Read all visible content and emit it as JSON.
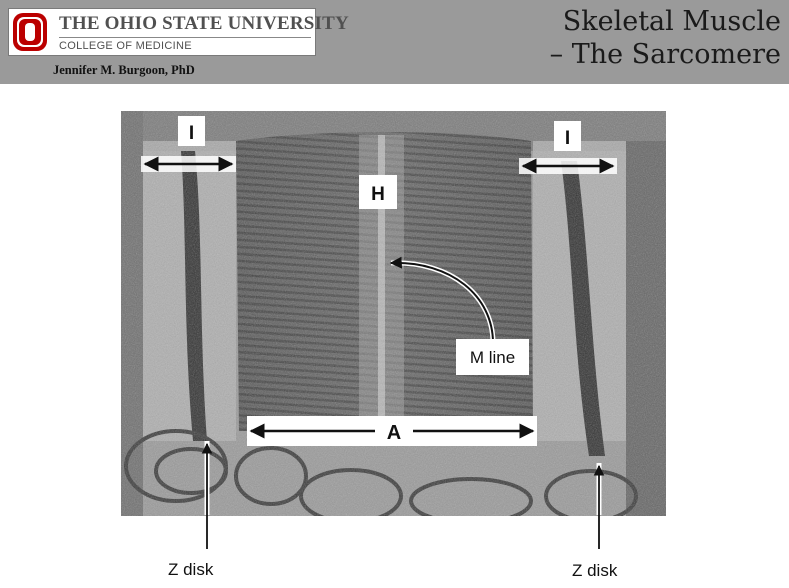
{
  "header": {
    "university": "THE OHIO STATE UNIVERSITY",
    "college": "COLLEGE OF MEDICINE",
    "author": "Jennifer M. Burgoon, PhD",
    "title_line1": "Skeletal Muscle",
    "title_line2": "– The Sarcomere"
  },
  "figure": {
    "label_i_left": "I",
    "label_i_right": "I",
    "label_h": "H",
    "label_m_line": "M line",
    "label_a": "A",
    "caption_z_left": "Z disk",
    "caption_z_right": "Z disk"
  },
  "colors": {
    "header_bg": "#9a9a9a",
    "osu_scarlet": "#bb0000"
  }
}
